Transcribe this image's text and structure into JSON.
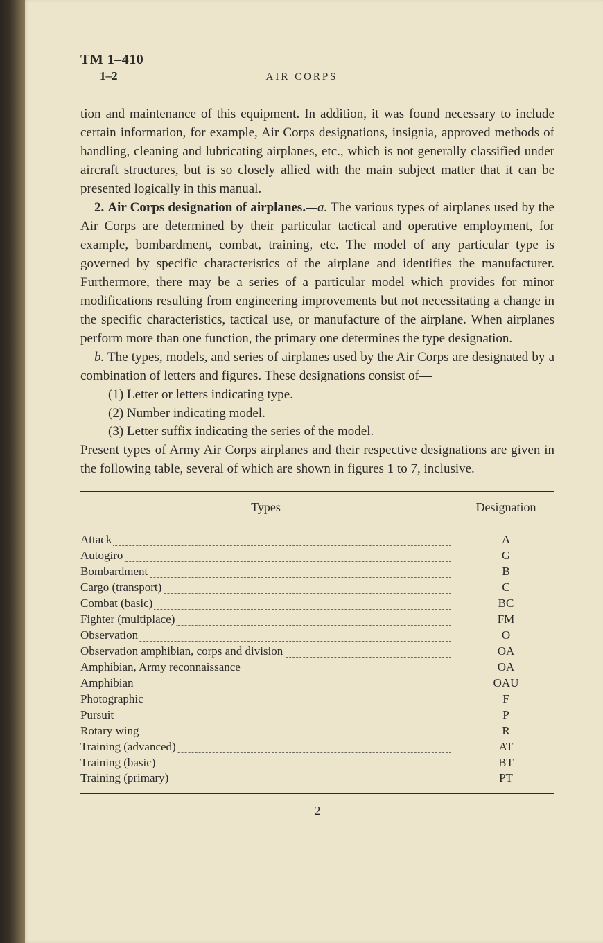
{
  "header": {
    "tm": "TM 1–410",
    "section": "1–2",
    "running": "AIR CORPS"
  },
  "paragraphs": {
    "p1": "tion and maintenance of this equipment.  In addition, it was found necessary to include certain information, for example, Air Corps designations, insignia, approved methods of handling, cleaning and lubricating airplanes, etc., which is not generally classified under aircraft structures, but is so closely allied with the main subject matter that it can be presented logically in this manual.",
    "p2_num": "2.",
    "p2_title": "Air Corps designation of airplanes.",
    "p2_sub": "—a.",
    "p2_body": " The various types of airplanes used by the Air Corps are determined by their particular tactical and operative employment, for example, bombardment, combat, training, etc.  The model of any particular type is governed by specific characteristics of the airplane and identifies the manufacturer. Furthermore, there may be a series of a particular model which provides for minor modifications resulting from engineering improvements but not necessitating a change in the specific characteristics, tactical use, or manufacture of the airplane.  When airplanes perform more than one function, the primary one determines the type designation.",
    "p3_sub": "b.",
    "p3_body": " The types, models, and series of airplanes used by the Air Corps are designated by a combination of letters and figures.  These designations consist of—",
    "list1": "(1) Letter or letters indicating type.",
    "list2": "(2) Number indicating model.",
    "list3": "(3) Letter suffix indicating the series of the model.",
    "p4": "Present types of Army Air Corps airplanes and their respective designations are given in the following table, several of which are shown in figures 1 to 7, inclusive."
  },
  "table": {
    "head_types": "Types",
    "head_desig": "Designation",
    "rows": [
      {
        "type": "Attack",
        "desig": "A"
      },
      {
        "type": "Autogiro",
        "desig": "G"
      },
      {
        "type": "Bombardment",
        "desig": "B"
      },
      {
        "type": "Cargo (transport)",
        "desig": "C"
      },
      {
        "type": "Combat (basic)",
        "desig": "BC"
      },
      {
        "type": "Fighter (multiplace)",
        "desig": "FM"
      },
      {
        "type": "Observation",
        "desig": "O"
      },
      {
        "type": "Observation amphibian, corps and division",
        "desig": "OA"
      },
      {
        "type": "Amphibian, Army reconnaissance",
        "desig": "OA"
      },
      {
        "type": "Amphibian",
        "desig": "OAU"
      },
      {
        "type": "Photographic",
        "desig": "F"
      },
      {
        "type": "Pursuit",
        "desig": "P"
      },
      {
        "type": "Rotary wing",
        "desig": "R"
      },
      {
        "type": "Training (advanced)",
        "desig": "AT"
      },
      {
        "type": "Training (basic)",
        "desig": "BT"
      },
      {
        "type": "Training (primary)",
        "desig": "PT"
      }
    ]
  },
  "page_number": "2",
  "colors": {
    "paper": "#ede4cc",
    "ink": "#2a2a28",
    "spine_dark": "#2a2520",
    "spine_light": "#8a7a5a"
  }
}
